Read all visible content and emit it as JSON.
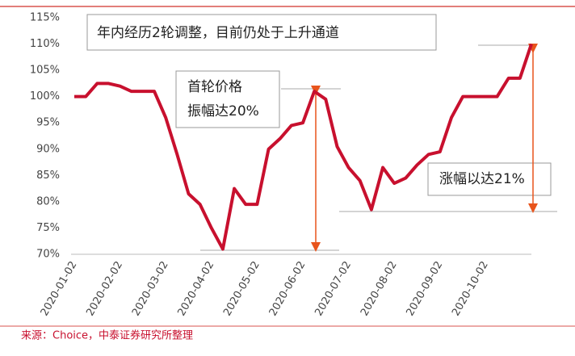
{
  "chart_data": {
    "type": "line",
    "categories": [
      "2020-01-02",
      null,
      null,
      null,
      "2020-02-02",
      null,
      null,
      null,
      "2020-03-02",
      null,
      null,
      null,
      "2020-04-02",
      null,
      null,
      null,
      "2020-05-02",
      null,
      null,
      null,
      "2020-06-02",
      null,
      null,
      null,
      "2020-07-02",
      null,
      null,
      null,
      "2020-08-02",
      null,
      null,
      null,
      "2020-09-02",
      null,
      null,
      null,
      "2020-10-02",
      null,
      null,
      null,
      null
    ],
    "series": [
      {
        "color": "#c8102e",
        "values": [
          100,
          100,
          102.5,
          102.5,
          102,
          101,
          101,
          101,
          96,
          89,
          81.5,
          79.5,
          75,
          71,
          82.5,
          79.5,
          79.5,
          90,
          92,
          94.5,
          95,
          101,
          99.5,
          90.5,
          86.5,
          84,
          78.5,
          86.5,
          83.5,
          84.5,
          87,
          89,
          89.5,
          96,
          100,
          100,
          100,
          100,
          103.5,
          103.5,
          110
        ]
      }
    ],
    "ylim": [
      70,
      115
    ],
    "yticks": [
      {
        "value": 70,
        "label": "70%"
      },
      {
        "value": 75,
        "label": "75%"
      },
      {
        "value": 80,
        "label": "80%"
      },
      {
        "value": 85,
        "label": "85%"
      },
      {
        "value": 90,
        "label": "90%"
      },
      {
        "value": 95,
        "label": "95%"
      },
      {
        "value": 100,
        "label": "100%"
      },
      {
        "value": 105,
        "label": "105%"
      },
      {
        "value": 110,
        "label": "110%"
      },
      {
        "value": 115,
        "label": "115%"
      }
    ],
    "annotations": [
      "年内经历2轮调整，目前仍处于上升通道",
      [
        "首轮价格",
        "振幅达20%"
      ],
      "涨幅以达21%"
    ],
    "source": "来源：Choice，中泰证券研究所整理"
  }
}
